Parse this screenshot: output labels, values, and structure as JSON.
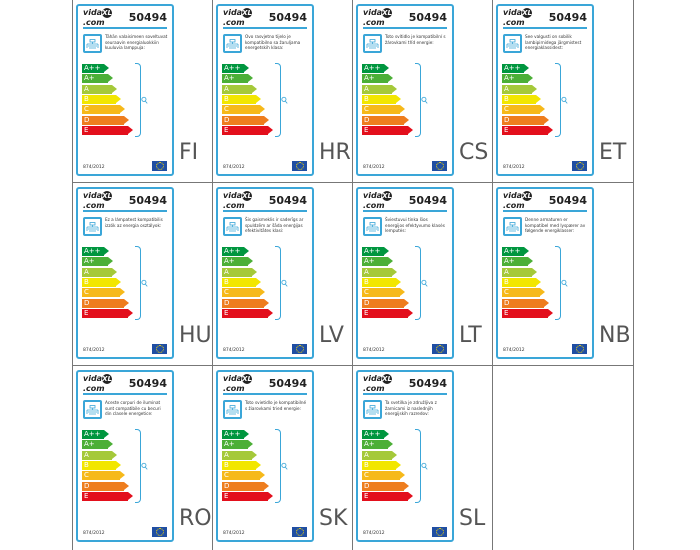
{
  "brand": "vidaXL.com",
  "model": "50494",
  "regulation": "874/2012",
  "classes": [
    {
      "label": "A++",
      "color": "#00963f"
    },
    {
      "label": "A+",
      "color": "#4caf37"
    },
    {
      "label": "A",
      "color": "#a5c93a"
    },
    {
      "label": "B",
      "color": "#f2e600"
    },
    {
      "label": "C",
      "color": "#f6b91a"
    },
    {
      "label": "D",
      "color": "#ee7d1e"
    },
    {
      "label": "E",
      "color": "#e30f1c"
    }
  ],
  "accent": "#3aa6d8",
  "labels": [
    {
      "lang": "FI",
      "text": "Tähän valaisimeen soveltuvat seuraavin energialuokkiin kuuluvia lamppuja:"
    },
    {
      "lang": "HR",
      "text": "Ovo rasvjetno tijelo je kompatibilno sa žaruljama energetskih klasa:"
    },
    {
      "lang": "CS",
      "text": "Toto svítidlo je kompatibilní s žárovkami tříd energie:"
    },
    {
      "lang": "ET",
      "text": "See valgusti on sobilik lambipirnidega järgmistest energiaklassidest:"
    },
    {
      "lang": "HU",
      "text": "Ez a lámpatest kompatibilis izzók az energia osztályok:"
    },
    {
      "lang": "LV",
      "text": "Šis gaismeklis ir saderīgs ar spuldzēm ar šāda enerģijas efektivitātes klasi:"
    },
    {
      "lang": "LT",
      "text": "Šviestuvui tinka šios energijos efektyvumo klasės lemputės:"
    },
    {
      "lang": "NB",
      "text": "Denne armaturen er kompatibel med lyspærer av følgende energiklasser:"
    },
    {
      "lang": "RO",
      "text": "Aceste corpuri de iluminat sunt compatibile cu becuri din clasele energetice:"
    },
    {
      "lang": "SK",
      "text": "Toto svietidlo je kompatibilné s žiarovkami tried energie:"
    },
    {
      "lang": "SL",
      "text": "Ta svetilka je združljiva z žarnicami iz naslednjih energijskih razredov:"
    }
  ]
}
